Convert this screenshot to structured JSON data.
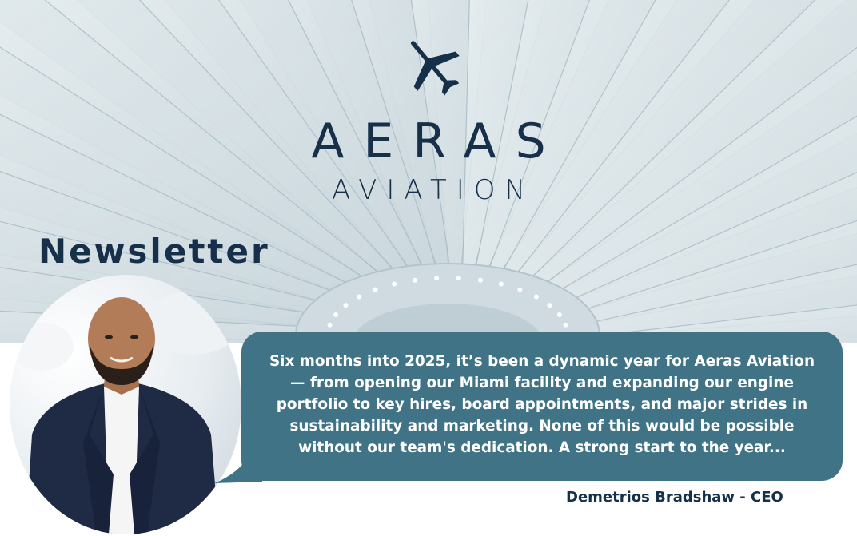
{
  "brand": {
    "name_line1": "AERAS",
    "name_line2": "AVIATION",
    "logo_icon": "airplane-icon"
  },
  "section_title": "Newsletter",
  "quote": {
    "text": "Six months into 2025, it’s been a dynamic year for Aeras Aviation — from opening our Miami facility and expanding our engine portfolio to key hires, board appointments, and major strides in sustainability and marketing. None of this would be possible without our team's dedication. A strong start to the year..."
  },
  "signature": "Demetrios Bradshaw - CEO",
  "colors": {
    "navy": "#16304a",
    "teal": "#3f7385",
    "background": "#ffffff"
  }
}
